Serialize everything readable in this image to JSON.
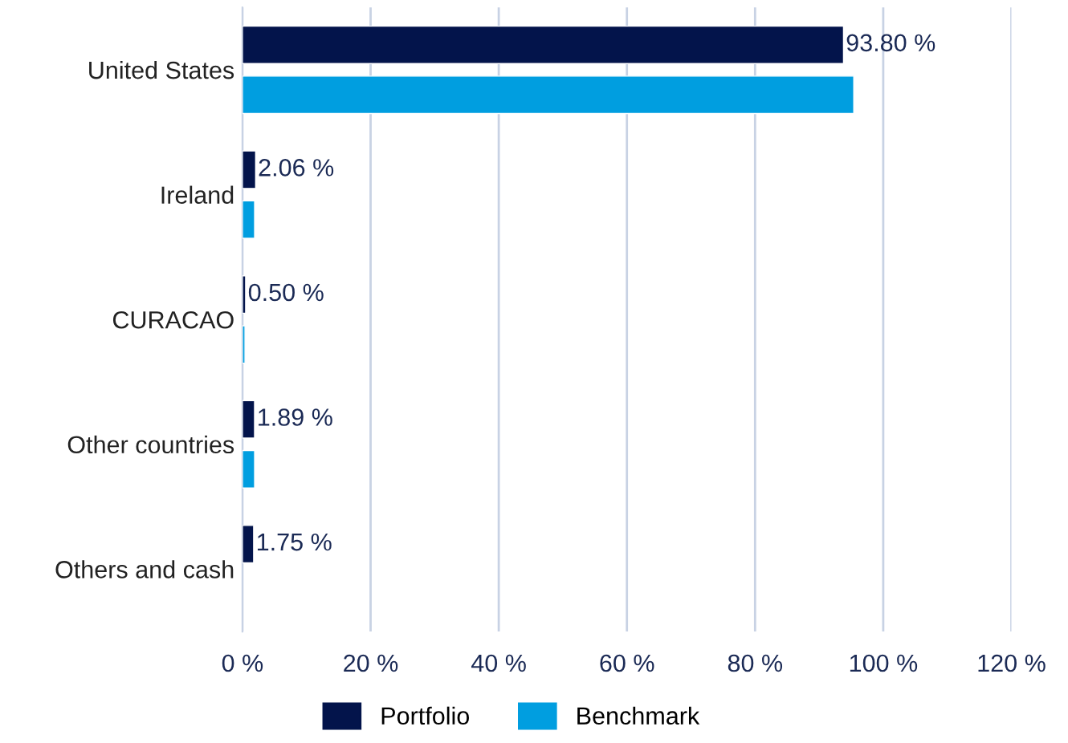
{
  "chart_data": {
    "type": "bar",
    "orientation": "horizontal",
    "categories": [
      "United States",
      "Ireland",
      "CURACAO",
      "Other countries",
      "Others and cash"
    ],
    "series": [
      {
        "name": "Portfolio",
        "color": "#03144b",
        "values": [
          93.8,
          2.06,
          0.5,
          1.89,
          1.75
        ],
        "value_labels": [
          "93.80 %",
          "2.06 %",
          "0.50 %",
          "1.89 %",
          "1.75 %"
        ]
      },
      {
        "name": "Benchmark",
        "color": "#009ee0",
        "values": [
          95.4,
          1.9,
          0.4,
          1.9,
          null
        ]
      }
    ],
    "xlim": [
      0,
      120
    ],
    "xticks": [
      {
        "value": 0,
        "label": "0 %"
      },
      {
        "value": 20,
        "label": "20 %"
      },
      {
        "value": 40,
        "label": "40 %"
      },
      {
        "value": 60,
        "label": "60 %"
      },
      {
        "value": 80,
        "label": "80 %"
      },
      {
        "value": 100,
        "label": "100 %"
      },
      {
        "value": 120,
        "label": "120 %"
      }
    ],
    "grid": "x",
    "legend": "bottom"
  }
}
